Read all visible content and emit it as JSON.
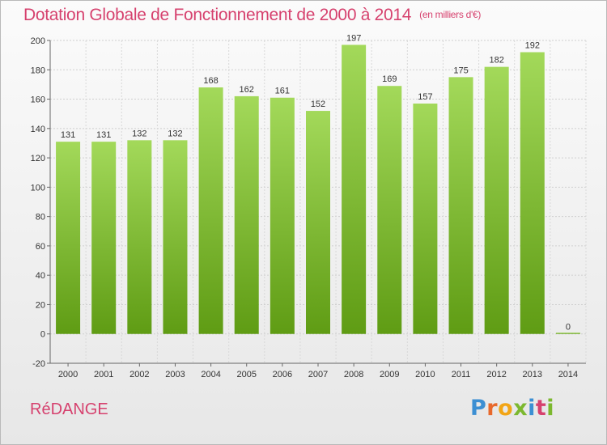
{
  "title": "Dotation Globale de Fonctionnement de 2000 à 2014",
  "unit_note": "(en milliers d'€)",
  "commune": "RéDANGE",
  "logo": {
    "text": "Proxiti",
    "letter_colors": [
      "#3c8fd3",
      "#e8692c",
      "#f2a516",
      "#7cb82f",
      "#3c8fd3",
      "#d6416e",
      "#7cb82f"
    ]
  },
  "colors": {
    "bar": "#7fbf2f",
    "bar_light": "#a3d95a",
    "bar_dark": "#5f9c14",
    "accent": "#d6416e"
  },
  "chart_data": {
    "type": "bar",
    "title": "Dotation Globale de Fonctionnement de 2000 à 2014",
    "subtitle": "(en milliers d'€)",
    "categories": [
      "2000",
      "2001",
      "2002",
      "2003",
      "2004",
      "2005",
      "2006",
      "2007",
      "2008",
      "2009",
      "2010",
      "2011",
      "2012",
      "2013",
      "2014"
    ],
    "values": [
      131,
      131,
      132,
      132,
      168,
      162,
      161,
      152,
      197,
      169,
      157,
      175,
      182,
      192,
      0
    ],
    "ylim": [
      -20,
      200
    ],
    "yticks": [
      -20,
      0,
      20,
      40,
      60,
      80,
      100,
      120,
      140,
      160,
      180,
      200
    ],
    "grid": true,
    "legend": "none"
  }
}
